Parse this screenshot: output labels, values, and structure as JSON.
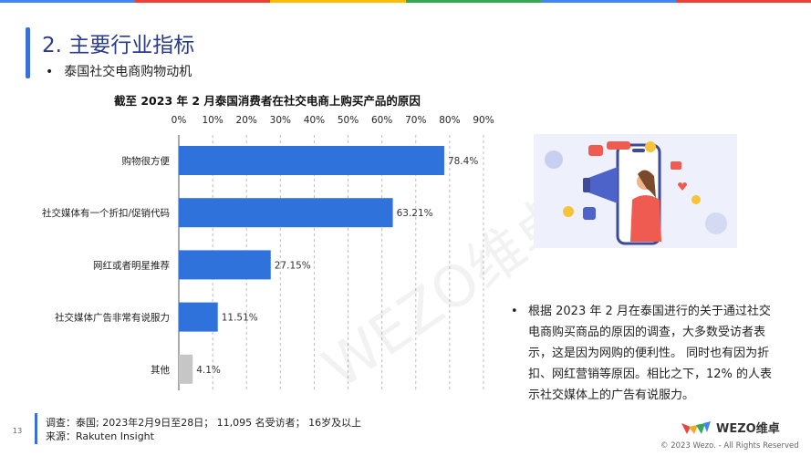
{
  "header": {
    "title": "2. 主要行业指标",
    "subtitle": "泰国社交电商购物动机"
  },
  "colors": {
    "accent": "#3a6fd8",
    "bar_main": "#2f72dc",
    "bar_other": "#c6c6c6",
    "top_stripe": [
      "#4285f4",
      "#ea4335",
      "#fbbc05",
      "#34a853",
      "#4285f4",
      "#ea4335"
    ]
  },
  "chart_data": {
    "type": "bar",
    "orientation": "horizontal",
    "title": "截至 2023 年 2 月泰国消费者在社交电商上购买产品的原因",
    "categories": [
      "购物很方便",
      "社交媒体有一个折扣/促销代码",
      "网红或者明星推荐",
      "社交媒体广告非常有说服力",
      "其他"
    ],
    "values": [
      78.4,
      63.21,
      27.15,
      11.51,
      4.1
    ],
    "value_labels": [
      "78.4%",
      "63.21%",
      "27.15%",
      "11.51%",
      "4.1%"
    ],
    "ticks": [
      0,
      10,
      20,
      30,
      40,
      50,
      60,
      70,
      80,
      90
    ],
    "tick_labels": [
      "0%",
      "10%",
      "20%",
      "30%",
      "40%",
      "50%",
      "60%",
      "70%",
      "80%",
      "90%"
    ],
    "xlim": [
      0,
      90
    ],
    "x_axis_position": "top",
    "grid": "dashed vertical",
    "highlight_category": "其他"
  },
  "watermark": "WEZO维卓",
  "note": {
    "bullet": "•",
    "text": "根据 2023 年 2 月在泰国进行的关于通过社交电商购买商品的原因的调查，大多数受访者表示，这是因为网购的便利性。 同时也有因为折扣、网红营销等原因。相比之下，12% 的人表示社交媒体上的广告有说服力。"
  },
  "footer": {
    "survey": "调查：泰国; 2023年2月9日至28日； 11,095 名受访者； 16岁及以上",
    "source": "来源：Rakuten Insight",
    "page": "13",
    "logo_text": "WEZO维卓",
    "copyright": "© 2023 Wezo. - All Rights Reserved"
  }
}
